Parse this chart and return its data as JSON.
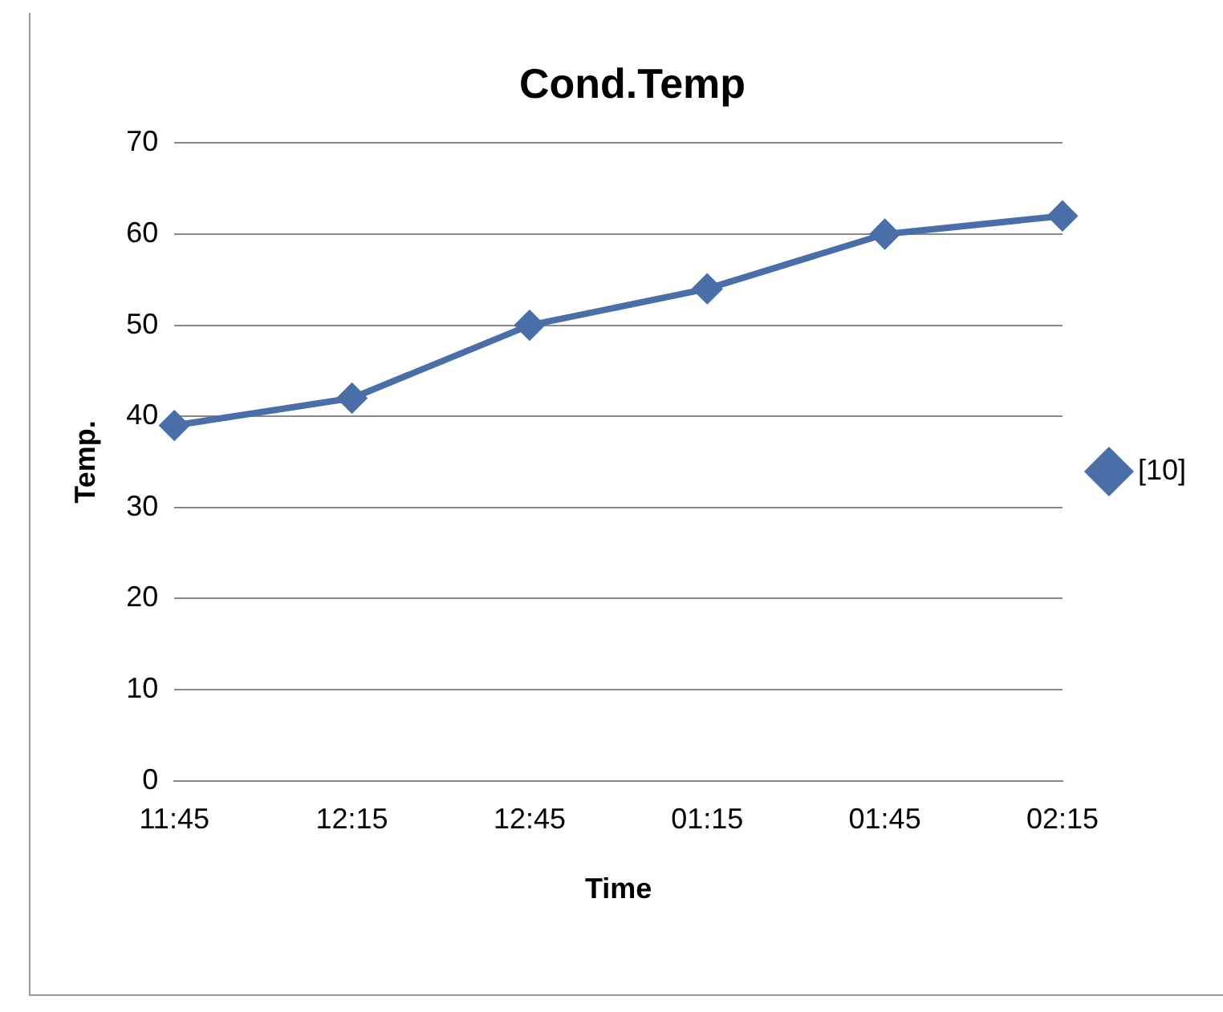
{
  "chart_data": {
    "type": "line",
    "title": "Cond.Temp",
    "xlabel": "Time",
    "ylabel": "Temp.",
    "categories": [
      "11:45",
      "12:15",
      "12:45",
      "01:15",
      "01:45",
      "02:15"
    ],
    "series": [
      {
        "name": "[10]",
        "color": "#4a6ea8",
        "values": [
          39,
          42,
          50,
          54,
          60,
          62
        ]
      }
    ],
    "ylim": [
      0,
      70
    ],
    "yticks": [
      0,
      10,
      20,
      30,
      40,
      50,
      60,
      70
    ],
    "grid": "y",
    "legend": "right",
    "marker": "diamond",
    "line_style": "solid"
  }
}
